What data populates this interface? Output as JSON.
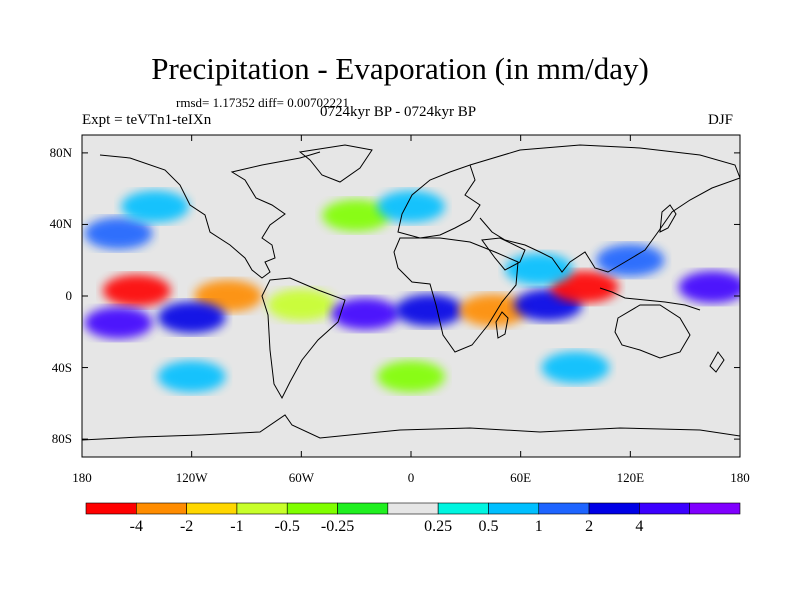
{
  "title": "Precipitation - Evaporation (in mm/day)",
  "stats_line": "rmsd= 1.17352 diff= 0.00702221",
  "experiment": "Expt = teVTn1-teIXn",
  "period": "0724kyr BP - 0724kyr BP",
  "season": "DJF",
  "map": {
    "projection": "cylindrical-equidistant",
    "lon_range": [
      -180,
      180
    ],
    "lat_range": [
      -90,
      90
    ],
    "lat_ticks": [
      {
        "value": 80,
        "label": "80N"
      },
      {
        "value": 40,
        "label": "40N"
      },
      {
        "value": 0,
        "label": "0"
      },
      {
        "value": -40,
        "label": "40S"
      },
      {
        "value": -80,
        "label": "80S"
      }
    ],
    "lon_ticks": [
      {
        "value": -180,
        "label": "180"
      },
      {
        "value": -120,
        "label": "120W"
      },
      {
        "value": -60,
        "label": "60W"
      },
      {
        "value": 0,
        "label": "0"
      },
      {
        "value": 60,
        "label": "60E"
      },
      {
        "value": 120,
        "label": "120E"
      },
      {
        "value": 180,
        "label": "180"
      }
    ],
    "background_color": "#e6e6e6",
    "coastline_color": "#000000"
  },
  "colorbar": {
    "colors": [
      "#ff0000",
      "#ff8c00",
      "#ffd700",
      "#c8ff2a",
      "#80ff00",
      "#20f020",
      "#e6e6e6",
      "#00f5e0",
      "#00bfff",
      "#1e64ff",
      "#0000e6",
      "#3c00ff",
      "#8000ff"
    ],
    "labels": [
      "-4",
      "-2",
      "-1",
      "-0.5",
      "-0.25",
      "0.25",
      "0.5",
      "1",
      "2",
      "4"
    ]
  },
  "chart_data": {
    "type": "heatmap",
    "title": "Precipitation - Evaporation (in mm/day)",
    "variable": "P-E",
    "units": "mm/day",
    "levels": [
      -4,
      -2,
      -1,
      -0.5,
      -0.25,
      0.25,
      0.5,
      1,
      2,
      4
    ],
    "fields": [
      {
        "lon": -150,
        "lat": 3,
        "value": -5
      },
      {
        "lon": -100,
        "lat": 0,
        "value": -3
      },
      {
        "lon": -160,
        "lat": -15,
        "value": 5
      },
      {
        "lon": -120,
        "lat": -12,
        "value": 2
      },
      {
        "lon": -160,
        "lat": 35,
        "value": 1.5
      },
      {
        "lon": -140,
        "lat": 50,
        "value": 0.7
      },
      {
        "lon": -60,
        "lat": -5,
        "value": -1
      },
      {
        "lon": -25,
        "lat": -10,
        "value": 5
      },
      {
        "lon": 10,
        "lat": -8,
        "value": 2
      },
      {
        "lon": 45,
        "lat": -8,
        "value": -2.5
      },
      {
        "lon": 75,
        "lat": -5,
        "value": 3
      },
      {
        "lon": 95,
        "lat": 5,
        "value": -5
      },
      {
        "lon": 120,
        "lat": 20,
        "value": 1.5
      },
      {
        "lon": 165,
        "lat": 5,
        "value": 5
      },
      {
        "lon": -30,
        "lat": 45,
        "value": -0.4
      },
      {
        "lon": 0,
        "lat": 50,
        "value": 0.8
      },
      {
        "lon": 70,
        "lat": 15,
        "value": 0.6
      },
      {
        "lon": -120,
        "lat": -45,
        "value": 0.6
      },
      {
        "lon": 0,
        "lat": -45,
        "value": -0.4
      },
      {
        "lon": 90,
        "lat": -40,
        "value": 0.6
      }
    ]
  }
}
